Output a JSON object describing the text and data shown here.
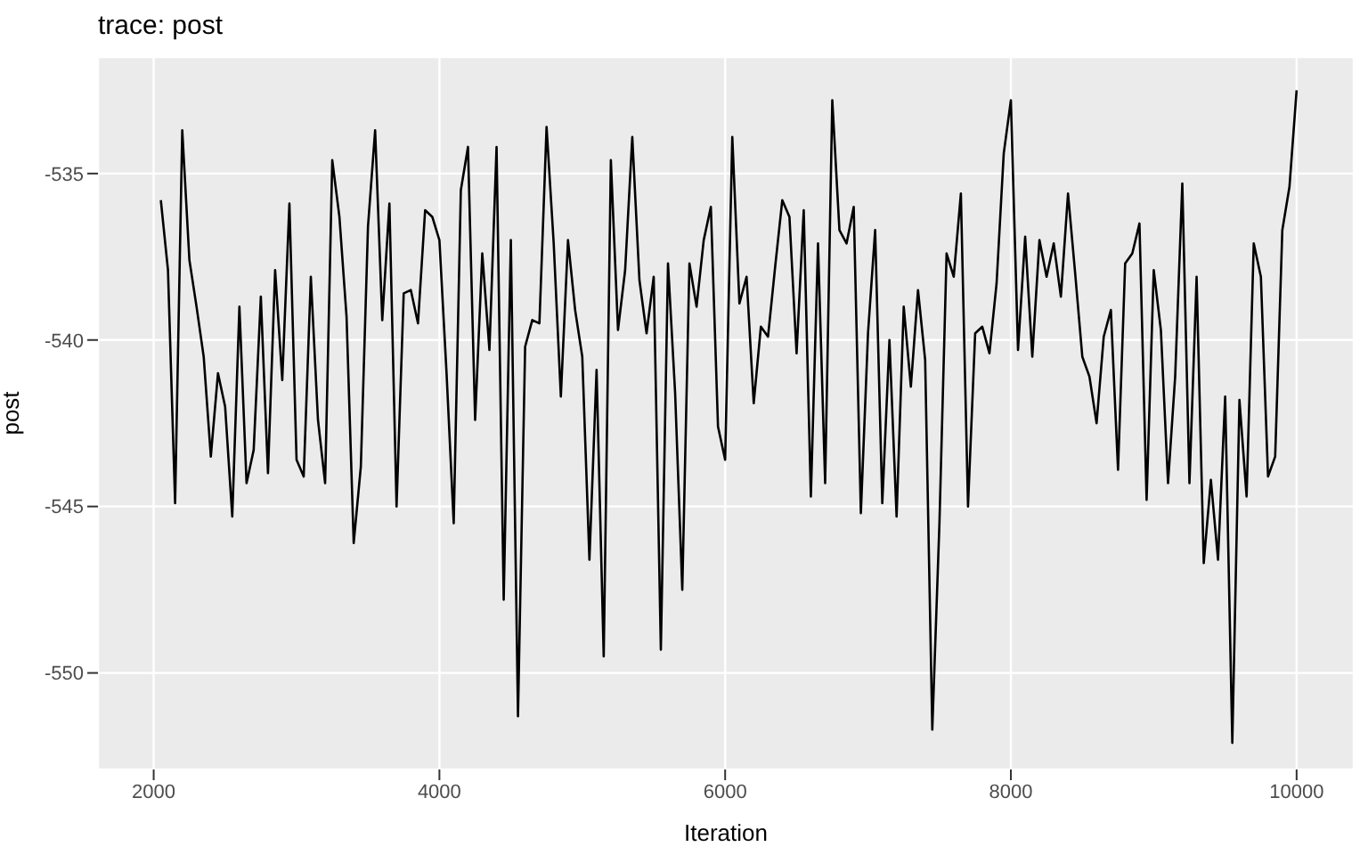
{
  "chart_data": {
    "type": "line",
    "title": "trace: post",
    "xlabel": "Iteration",
    "ylabel": "post",
    "x": [
      2050,
      2100,
      2150,
      2200,
      2250,
      2300,
      2350,
      2400,
      2450,
      2500,
      2550,
      2600,
      2650,
      2700,
      2750,
      2800,
      2850,
      2900,
      2950,
      3000,
      3050,
      3100,
      3150,
      3200,
      3250,
      3300,
      3350,
      3400,
      3450,
      3500,
      3550,
      3600,
      3650,
      3700,
      3750,
      3800,
      3850,
      3900,
      3950,
      4000,
      4050,
      4100,
      4150,
      4200,
      4250,
      4300,
      4350,
      4400,
      4450,
      4500,
      4550,
      4600,
      4650,
      4700,
      4750,
      4800,
      4850,
      4900,
      4950,
      5000,
      5050,
      5100,
      5150,
      5200,
      5250,
      5300,
      5350,
      5400,
      5450,
      5500,
      5550,
      5600,
      5650,
      5700,
      5750,
      5800,
      5850,
      5900,
      5950,
      6000,
      6050,
      6100,
      6150,
      6200,
      6250,
      6300,
      6350,
      6400,
      6450,
      6500,
      6550,
      6600,
      6650,
      6700,
      6750,
      6800,
      6850,
      6900,
      6950,
      7000,
      7050,
      7100,
      7150,
      7200,
      7250,
      7300,
      7350,
      7400,
      7450,
      7500,
      7550,
      7600,
      7650,
      7700,
      7750,
      7800,
      7850,
      7900,
      7950,
      8000,
      8050,
      8100,
      8150,
      8200,
      8250,
      8300,
      8350,
      8400,
      8450,
      8500,
      8550,
      8600,
      8650,
      8700,
      8750,
      8800,
      8850,
      8900,
      8950,
      9000,
      9050,
      9100,
      9150,
      9200,
      9250,
      9300,
      9350,
      9400,
      9450,
      9500,
      9550,
      9600,
      9650,
      9700,
      9750,
      9800,
      9850,
      9900,
      9950,
      10000
    ],
    "series": [
      {
        "color": "#000000",
        "values": [
          -535.8,
          -537.9,
          -544.9,
          -533.7,
          -537.6,
          -539.0,
          -540.5,
          -543.5,
          -541.0,
          -542.0,
          -545.3,
          -539.0,
          -544.3,
          -543.3,
          -538.7,
          -544.0,
          -537.9,
          -541.2,
          -535.9,
          -543.6,
          -544.1,
          -538.1,
          -542.4,
          -544.3,
          -534.6,
          -536.3,
          -539.3,
          -546.1,
          -543.8,
          -536.6,
          -533.7,
          -539.4,
          -535.9,
          -545.0,
          -538.6,
          -538.5,
          -539.5,
          -536.1,
          -536.3,
          -537.0,
          -541.0,
          -545.5,
          -535.5,
          -534.2,
          -542.4,
          -537.4,
          -540.3,
          -534.2,
          -547.8,
          -537.0,
          -551.3,
          -540.2,
          -539.4,
          -539.5,
          -533.6,
          -537.1,
          -541.7,
          -537.0,
          -539.1,
          -540.5,
          -546.6,
          -540.9,
          -549.5,
          -534.6,
          -539.7,
          -537.9,
          -533.9,
          -538.2,
          -539.8,
          -538.1,
          -549.3,
          -537.7,
          -541.6,
          -547.5,
          -537.7,
          -539.0,
          -537.0,
          -536.0,
          -542.6,
          -543.6,
          -533.9,
          -538.9,
          -538.1,
          -541.9,
          -539.6,
          -539.9,
          -537.8,
          -535.8,
          -536.3,
          -540.4,
          -536.1,
          -544.7,
          -537.1,
          -544.3,
          -532.8,
          -536.7,
          -537.1,
          -536.0,
          -545.2,
          -539.8,
          -536.7,
          -544.9,
          -540.0,
          -545.3,
          -539.0,
          -541.4,
          -538.5,
          -540.6,
          -551.7,
          -545.5,
          -537.4,
          -538.1,
          -535.6,
          -545.0,
          -539.8,
          -539.6,
          -540.4,
          -538.3,
          -534.4,
          -532.8,
          -540.3,
          -536.9,
          -540.5,
          -537.0,
          -538.1,
          -537.1,
          -538.7,
          -535.6,
          -538.0,
          -540.5,
          -541.1,
          -542.5,
          -539.9,
          -539.1,
          -543.9,
          -537.7,
          -537.4,
          -536.5,
          -544.8,
          -537.9,
          -539.7,
          -544.3,
          -541.1,
          -535.3,
          -544.3,
          -538.1,
          -546.7,
          -544.2,
          -546.6,
          -541.7,
          -552.1,
          -541.8,
          -544.7,
          -537.1,
          -538.1,
          -544.1,
          -543.5,
          -536.7,
          -535.4,
          -532.5
        ]
      }
    ],
    "xlim": [
      1610,
      10400
    ],
    "ylim": [
      -552.9,
      -531.5
    ],
    "xticks": [
      2000,
      4000,
      6000,
      8000,
      10000
    ],
    "yticks": [
      -550,
      -545,
      -540,
      -535
    ],
    "grid": true,
    "legend": false,
    "marker": "none",
    "line_style": "solid"
  }
}
